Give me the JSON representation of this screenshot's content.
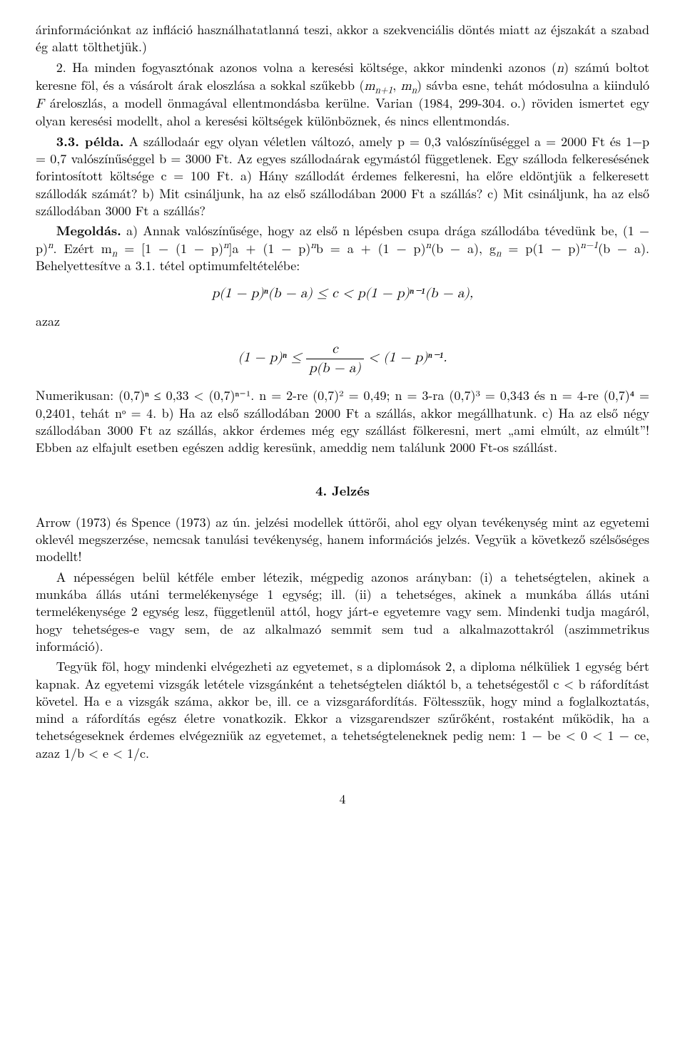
{
  "para1": "árinformációnkat az infláció használhatatlanná teszi, akkor a szekvenciális döntés miatt az éjszakát a szabad ég alatt tölthetjük.)",
  "para2_lead": "2. Ha minden fogyasztónak azonos volna a keresési költsége, akkor mindenki azonos (",
  "para2_n": "n",
  "para2_a": ") számú boltot keresne föl, és a vásárolt árak eloszlása a sokkal szűkebb (",
  "para2_m1": "m",
  "para2_sub1": "n+1",
  "para2_comma": ", ",
  "para2_m2": "m",
  "para2_sub2": "n",
  "para2_b": ") sávba esne, tehát módosulna a kiinduló ",
  "para2_F": "F",
  "para2_c": " áreloszlás, a modell önmagával ellentmondásba kerülne. Varian (1984, 299-304. o.) röviden ismertet egy olyan keresési modellt, ahol a keresési költségek különböznek, és nincs ellentmondás.",
  "ex_lead": "3.3. példa.",
  "ex_body": " A szállodaár egy olyan véletlen változó, amely p = 0,3 valószínűséggel a = 2000 Ft és 1−p = 0,7 valószínűséggel b = 3000 Ft. Az egyes szállodaárak egymástól függetlenek. Egy szálloda felkeresésének forintosított költsége c = 100 Ft. a) Hány szállodát érdemes felkeresni, ha előre eldöntjük a felkeresett szállodák számát? b) Mit csináljunk, ha az első szállodában 2000 Ft a szállás? c) Mit csináljunk, ha az első szállodában 3000 Ft a szállás?",
  "sol_lead": "Megoldás.",
  "sol_a": " a) Annak valószínűsége, hogy az első n lépésben csupa drága szállodába tévedünk be, (1 − p)",
  "sol_a_sup": "n",
  "sol_a2": ". Ezért m",
  "sol_a2_sub": "n",
  "sol_a3": " = [1 − (1 − p)",
  "sol_a3_sup": "n",
  "sol_a4": "]a + (1 − p)",
  "sol_a4_sup": "n",
  "sol_a5": "b = a + (1 − p)",
  "sol_a5_sup": "n",
  "sol_a6": "(b − a), g",
  "sol_a6_sub": "n",
  "sol_a7": " = p(1 − p)",
  "sol_a7_sup": "n−1",
  "sol_a8": "(b − a). Behelyettesítve a 3.1. tétel optimumfeltételébe:",
  "eq1": "p(1 − p)ⁿ(b − a) ≤ c < p(1 − p)ⁿ⁻¹(b − a),",
  "azaz": "azaz",
  "eq2_left": "(1 − p)ⁿ ≤ ",
  "eq2_num": "c",
  "eq2_den": "p(b − a)",
  "eq2_right": " < (1 − p)ⁿ⁻¹.",
  "num_body": "Numerikusan: (0,7)ⁿ ≤ 0,33 < (0,7)ⁿ⁻¹. n = 2-re (0,7)² = 0,49; n = 3-ra (0,7)³ = 0,343 és n = 4-re (0,7)⁴ = 0,2401, tehát nᵒ = 4. b) Ha az első szállodában 2000 Ft a szállás, akkor megállhatunk. c) Ha az első négy szállodában 3000 Ft az szállás, akkor érdemes még egy szállást fölkeresni, mert „ami elmúlt, az elmúlt”! Ebben az elfajult esetben egészen addig keresünk, ameddig nem találunk 2000 Ft-os szállást.",
  "section": "4. Jelzés",
  "s4p1": "Arrow (1973) és Spence (1973) az ún. jelzési modellek úttörői, ahol egy olyan tevékenység mint az egyetemi oklevél megszerzése, nemcsak tanulási tevékenység, hanem információs jelzés. Vegyük a következő szélsőséges modellt!",
  "s4p2": "A népességen belül kétféle ember létezik, mégpedig azonos arányban: (i) a tehetségtelen, akinek a munkába állás utáni termelékenysége 1 egység; ill. (ii) a tehetséges, akinek a munkába állás utáni termelékenysége 2 egység lesz, függetlenül attól, hogy járt-e egyetemre vagy sem. Mindenki tudja magáról, hogy tehetséges-e vagy sem, de az alkalmazó semmit sem tud a alkalmazottakról (aszimmetrikus információ).",
  "s4p3": "Tegyük föl, hogy mindenki elvégezheti az egyetemet, s a diplomások 2, a diploma nélküliek 1 egység bért kapnak. Az egyetemi vizsgák letétele vizsgánként a tehetségtelen diáktól b, a tehetségestől c < b ráfordítást követel. Ha e a vizsgák száma, akkor be, ill. ce a vizsgaráfordítás. Föltesszük, hogy mind a foglalkoztatás, mind a ráfordítás egész életre vonatkozik. Ekkor a vizsgarendszer szűrőként, rostaként működik, ha a tehetségeseknek érdemes elvégezniük az egyetemet, a tehetségteleneknek pedig nem: 1 − be < 0 < 1 − ce, azaz 1/b < e < 1/c.",
  "pagenum": "4"
}
